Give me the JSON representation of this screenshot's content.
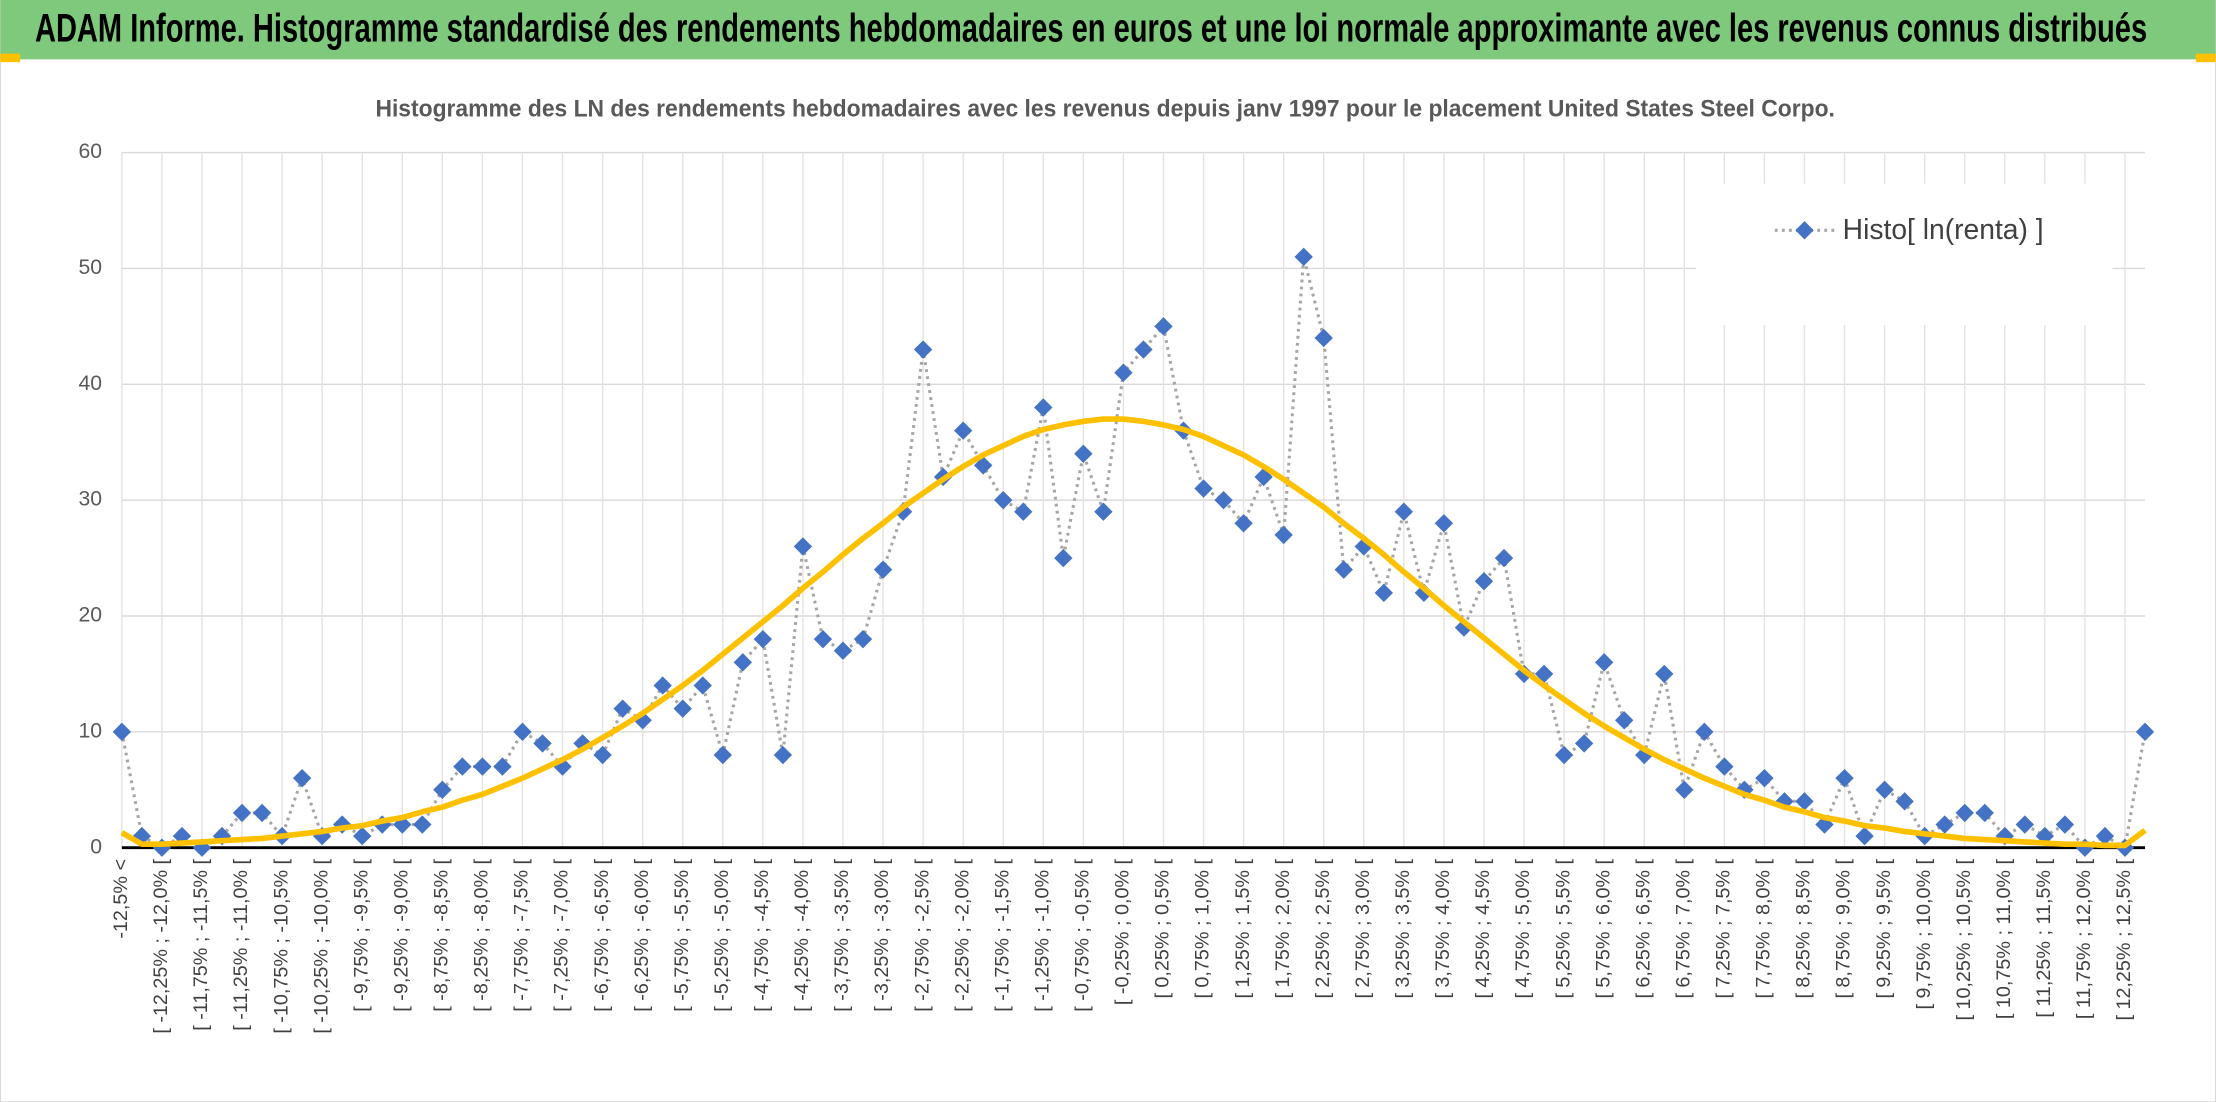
{
  "header": {
    "title": "ADAM Informe. Histogramme standardisé des rendements hebdomadaires en euros et une loi normale approximante avec les revenus connus distribués"
  },
  "chart_data": {
    "type": "line",
    "title": "Histogramme des LN des rendements hebdomadaires avec les revenus depuis janv 1997 pour le placement United States Steel Corpo.",
    "categories": [
      "-12,5% <",
      null,
      "[ -12,25% ; -12,0% [",
      null,
      "[ -11,75% ; -11,5% [",
      null,
      "[ -11,25% ; -11,0% [",
      null,
      "[ -10,75% ; -10,5% [",
      null,
      "[ -10,25% ; -10,0% [",
      null,
      "[ -9,75% ; -9,5% [",
      null,
      "[ -9,25% ; -9,0% [",
      null,
      "[ -8,75% ; -8,5% [",
      null,
      "[ -8,25% ; -8,0% [",
      null,
      "[ -7,75% ; -7,5% [",
      null,
      "[ -7,25% ; -7,0% [",
      null,
      "[ -6,75% ; -6,5% [",
      null,
      "[ -6,25% ; -6,0% [",
      null,
      "[ -5,75% ; -5,5% [",
      null,
      "[ -5,25% ; -5,0% [",
      null,
      "[ -4,75% ; -4,5% [",
      null,
      "[ -4,25% ; -4,0% [",
      null,
      "[ -3,75% ; -3,5% [",
      null,
      "[ -3,25% ; -3,0% [",
      null,
      "[ -2,75% ; -2,5% [",
      null,
      "[ -2,25% ; -2,0% [",
      null,
      "[ -1,75% ; -1,5% [",
      null,
      "[ -1,25% ; -1,0% [",
      null,
      "[ -0,75% ; -0,5% [",
      null,
      "[ -0,25% ; 0,0% [",
      null,
      "[ 0,25% ; 0,5% [",
      null,
      "[ 0,75% ; 1,0% [",
      null,
      "[ 1,25% ; 1,5% [",
      null,
      "[ 1,75% ; 2,0% [",
      null,
      "[ 2,25% ; 2,5% [",
      null,
      "[ 2,75% ; 3,0% [",
      null,
      "[ 3,25% ; 3,5% [",
      null,
      "[ 3,75% ; 4,0% [",
      null,
      "[ 4,25% ; 4,5% [",
      null,
      "[ 4,75% ; 5,0% [",
      null,
      "[ 5,25% ; 5,5% [",
      null,
      "[ 5,75% ; 6,0% [",
      null,
      "[ 6,25% ; 6,5% [",
      null,
      "[ 6,75% ; 7,0% [",
      null,
      "[ 7,25% ; 7,5% [",
      null,
      "[ 7,75% ; 8,0% [",
      null,
      "[ 8,25% ; 8,5% [",
      null,
      "[ 8,75% ; 9,0% [",
      null,
      "[ 9,25% ; 9,5% [",
      null,
      "[ 9,75% ; 10,0% [",
      null,
      "[ 10,25% ; 10,5% [",
      null,
      "[ 10,75% ; 11,0% [",
      null,
      "[ 11,25% ; 11,5% [",
      null,
      "[ 11,75% ; 12,0% [",
      null,
      "[ 12,25% ; 12,5% [",
      null
    ],
    "series": [
      {
        "name": "Histo[ ln(renta) ]",
        "color": "#4472c4",
        "line_color": "#a6a6a6",
        "line_style": "dotted",
        "marker": "diamond",
        "values": [
          10,
          1,
          0,
          1,
          0,
          1,
          3,
          3,
          1,
          6,
          1,
          2,
          1,
          2,
          2,
          2,
          5,
          7,
          7,
          7,
          10,
          9,
          7,
          9,
          8,
          12,
          11,
          14,
          12,
          14,
          8,
          16,
          18,
          8,
          26,
          18,
          17,
          18,
          24,
          29,
          43,
          32,
          36,
          33,
          30,
          29,
          38,
          25,
          34,
          29,
          41,
          43,
          45,
          36,
          31,
          30,
          28,
          32,
          27,
          51,
          44,
          24,
          26,
          22,
          29,
          22,
          28,
          19,
          23,
          25,
          15,
          15,
          8,
          9,
          16,
          11,
          8,
          15,
          5,
          10,
          7,
          5,
          6,
          4,
          4,
          2,
          6,
          1,
          5,
          4,
          1,
          2,
          3,
          3,
          1,
          2,
          1,
          2,
          0,
          1,
          0,
          10
        ]
      },
      {
        "color": "#ffc000",
        "line_style": "solid",
        "values": [
          1.3,
          0.3,
          0.3,
          0.4,
          0.5,
          0.6,
          0.7,
          0.8,
          1.0,
          1.2,
          1.4,
          1.7,
          1.9,
          2.3,
          2.6,
          3.1,
          3.5,
          4.1,
          4.6,
          5.3,
          6.0,
          6.8,
          7.6,
          8.5,
          9.5,
          10.5,
          11.6,
          12.8,
          14.0,
          15.3,
          16.7,
          18.1,
          19.5,
          20.9,
          22.4,
          23.8,
          25.3,
          26.7,
          28.0,
          29.4,
          30.6,
          31.8,
          32.9,
          33.9,
          34.7,
          35.5,
          36.1,
          36.5,
          36.8,
          37.0,
          37.0,
          36.8,
          36.5,
          36.1,
          35.5,
          34.7,
          33.9,
          32.9,
          31.8,
          30.6,
          29.4,
          28.0,
          26.7,
          25.3,
          23.8,
          22.4,
          20.9,
          19.5,
          18.1,
          16.7,
          15.3,
          14.0,
          12.8,
          11.6,
          10.5,
          9.5,
          8.5,
          7.6,
          6.8,
          6.0,
          5.3,
          4.6,
          4.1,
          3.5,
          3.1,
          2.6,
          2.3,
          1.9,
          1.7,
          1.4,
          1.2,
          1.0,
          0.8,
          0.7,
          0.6,
          0.5,
          0.4,
          0.3,
          0.3,
          0.2,
          0.2,
          1.5
        ]
      }
    ],
    "ylim": [
      0,
      60
    ],
    "yticks": [
      0,
      10,
      20,
      30,
      40,
      50,
      60
    ],
    "grid": true,
    "legend": "top-right"
  }
}
